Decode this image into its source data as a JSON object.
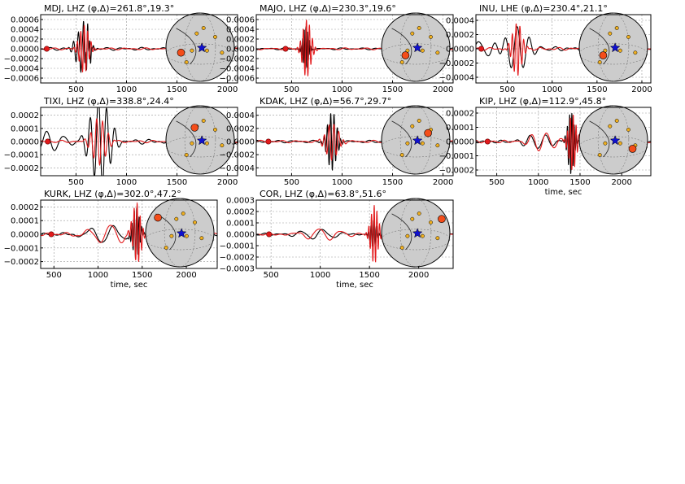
{
  "colors": {
    "observed": "#000000",
    "synthetic": "#e31a1c",
    "event_star": "#1010d0",
    "station": "#f44d1a",
    "other_stations": "#f0b020",
    "globe": "#cccccc"
  },
  "chart_data": [
    {
      "type": "line",
      "title": "MDJ, LHZ (φ,Δ)=261.8°,19.3°",
      "station": "MDJ",
      "component": "LHZ",
      "azimuth": 261.8,
      "distance": 19.3,
      "xlim": [
        150,
        2100
      ],
      "ylim": [
        -0.0007,
        0.0007
      ],
      "xticks": [
        500,
        1000,
        1500,
        2000
      ],
      "yticks": [
        -0.0006,
        -0.0004,
        -0.0002,
        0.0,
        0.0002,
        0.0004,
        0.0006
      ],
      "ytick_labels": [
        "−0.0006",
        "−0.0004",
        "−0.0002",
        "0.0000",
        "0.0002",
        "0.0004",
        "0.0006"
      ],
      "xlabel": "",
      "arrival_marks": [
        210
      ],
      "series": [
        {
          "kind": "observed",
          "packets": [
            [
              560,
              80,
              0.00045,
              4.5
            ],
            [
              610,
              40,
              0.0003,
              5.5
            ]
          ],
          "noise": 3e-05
        },
        {
          "kind": "synthetic",
          "packets": [
            [
              580,
              60,
              0.0005,
              4.8
            ]
          ],
          "noise": 2e-05
        }
      ],
      "globe_station": [
        0.22,
        0.58
      ]
    },
    {
      "type": "line",
      "title": "MAJO, LHZ (φ,Δ)=230.3°,19.6°",
      "station": "MAJO",
      "component": "LHZ",
      "azimuth": 230.3,
      "distance": 19.6,
      "xlim": [
        150,
        2100
      ],
      "ylim": [
        -0.0007,
        0.0007
      ],
      "xticks": [
        500,
        1000,
        1500,
        2000
      ],
      "yticks": [
        -0.0006,
        -0.0004,
        -0.0002,
        0.0,
        0.0002,
        0.0004,
        0.0006
      ],
      "ytick_labels": [
        "−0.0006",
        "−0.0004",
        "−0.0002",
        "0.0000",
        "0.0002",
        "0.0004",
        "0.0006"
      ],
      "xlabel": "",
      "arrival_marks": [
        440
      ],
      "series": [
        {
          "kind": "observed",
          "packets": [
            [
              640,
              35,
              0.00045,
              6.0
            ]
          ],
          "noise": 2e-05
        },
        {
          "kind": "synthetic",
          "packets": [
            [
              650,
              55,
              0.0006,
              5.0
            ]
          ],
          "noise": 2e-05
        }
      ],
      "globe_station": [
        0.35,
        0.62
      ]
    },
    {
      "type": "line",
      "title": "INU, LHE (φ,Δ)=230.4°,21.1°",
      "station": "INU",
      "component": "LHE",
      "azimuth": 230.4,
      "distance": 21.1,
      "xlim": [
        150,
        2100
      ],
      "ylim": [
        -0.00048,
        0.00048
      ],
      "xticks": [
        500,
        1000,
        1500,
        2000
      ],
      "yticks": [
        -0.0004,
        -0.0002,
        0.0,
        0.0002,
        0.0004
      ],
      "ytick_labels": [
        "−0.0004",
        "−0.0002",
        "0.0000",
        "0.0002",
        "0.0004"
      ],
      "xlabel": "",
      "arrival_marks": [
        210
      ],
      "series": [
        {
          "kind": "observed",
          "packets": [
            [
              200,
              250,
              0.00012,
              3.5
            ],
            [
              620,
              180,
              0.0003,
              3.6
            ]
          ],
          "noise": 3e-05
        },
        {
          "kind": "synthetic",
          "packets": [
            [
              610,
              70,
              0.00038,
              4.5
            ]
          ],
          "noise": 2e-05
        }
      ],
      "globe_station": [
        0.35,
        0.62
      ]
    },
    {
      "type": "line",
      "title": "TIXI, LHZ (φ,Δ)=338.8°,24.4°",
      "station": "TIXI",
      "component": "LHZ",
      "azimuth": 338.8,
      "distance": 24.4,
      "xlim": [
        150,
        2100
      ],
      "ylim": [
        -0.00026,
        0.00026
      ],
      "xticks": [
        500,
        1000,
        1500,
        2000
      ],
      "yticks": [
        -0.0002,
        -0.0001,
        0.0,
        0.0001,
        0.0002
      ],
      "ytick_labels": [
        "−0.0002",
        "−0.0001",
        "0.0000",
        "0.0001",
        "0.0002"
      ],
      "xlabel": "",
      "arrival_marks": [
        220
      ],
      "series": [
        {
          "kind": "observed",
          "packets": [
            [
              250,
              200,
              8e-05,
              3.2
            ],
            [
              740,
              120,
              0.00035,
              4.0
            ]
          ],
          "noise": 2e-05
        },
        {
          "kind": "synthetic",
          "packets": [
            [
              730,
              90,
              0.00018,
              4.2
            ]
          ],
          "noise": 1e-05
        }
      ],
      "globe_station": [
        0.42,
        0.32
      ]
    },
    {
      "type": "line",
      "title": "KDAK, LHZ (φ,Δ)=56.7°,29.7°",
      "station": "KDAK",
      "component": "LHZ",
      "azimuth": 56.7,
      "distance": 29.7,
      "xlim": [
        150,
        2100
      ],
      "ylim": [
        -0.00052,
        0.00052
      ],
      "xticks": [
        500,
        1000,
        1500,
        2000
      ],
      "yticks": [
        -0.0004,
        -0.0002,
        0.0,
        0.0002,
        0.0004
      ],
      "ytick_labels": [
        "−0.0004",
        "−0.0002",
        "0.0000",
        "0.0002",
        "0.0004"
      ],
      "xlabel": "",
      "arrival_marks": [
        270
      ],
      "series": [
        {
          "kind": "observed",
          "packets": [
            [
              900,
              60,
              0.00045,
              5.0
            ]
          ],
          "noise": 2e-05
        },
        {
          "kind": "synthetic",
          "packets": [
            [
              900,
              80,
              0.00028,
              4.6
            ]
          ],
          "noise": 2e-05
        }
      ],
      "globe_station": [
        0.68,
        0.4
      ]
    },
    {
      "type": "line",
      "title": "KIP, LHZ (φ,Δ)=112.9°,45.8°",
      "station": "KIP",
      "component": "LHZ",
      "azimuth": 112.9,
      "distance": 45.8,
      "xlim": [
        250,
        2350
      ],
      "ylim": [
        -0.00024,
        0.00024
      ],
      "xticks": [
        500,
        1000,
        1500,
        2000
      ],
      "yticks": [
        -0.0002,
        -0.0001,
        0.0,
        0.0001,
        0.0002
      ],
      "ytick_labels": [
        "−0.0002",
        "−0.0001",
        "0.0000",
        "0.0001",
        "0.0002"
      ],
      "xlabel": "time, sec",
      "arrival_marks": [
        390
      ],
      "series": [
        {
          "kind": "observed",
          "packets": [
            [
              1000,
              200,
              5e-05,
              3.0
            ],
            [
              1390,
              50,
              0.00022,
              5.0
            ]
          ],
          "noise": 1e-05
        },
        {
          "kind": "synthetic",
          "packets": [
            [
              1050,
              200,
              7e-05,
              3.0
            ],
            [
              1410,
              60,
              0.0002,
              4.8
            ]
          ],
          "noise": 1e-05
        }
      ],
      "globe_station": [
        0.78,
        0.63
      ]
    },
    {
      "type": "line",
      "title": "KURK, LHZ (φ,Δ)=302.0°,47.2°",
      "station": "KURK",
      "component": "LHZ",
      "azimuth": 302.0,
      "distance": 47.2,
      "xlim": [
        350,
        2350
      ],
      "ylim": [
        -0.00025,
        0.00025
      ],
      "xticks": [
        500,
        1000,
        1500,
        2000
      ],
      "yticks": [
        -0.0002,
        -0.0001,
        0.0,
        0.0001,
        0.0002
      ],
      "ytick_labels": [
        "−0.0002",
        "−0.0001",
        "0.0000",
        "0.0001",
        "0.0002"
      ],
      "xlabel": "time, sec",
      "arrival_marks": [
        470
      ],
      "series": [
        {
          "kind": "observed",
          "packets": [
            [
              1100,
              300,
              6e-05,
              3.0
            ],
            [
              1430,
              50,
              0.00019,
              5.0
            ]
          ],
          "noise": 1e-05
        },
        {
          "kind": "synthetic",
          "packets": [
            [
              1120,
              280,
              7e-05,
              3.0
            ],
            [
              1440,
              60,
              0.00022,
              4.8
            ]
          ],
          "noise": 1e-05
        }
      ],
      "globe_station": [
        0.18,
        0.28
      ]
    },
    {
      "type": "line",
      "title": "COR, LHZ (φ,Δ)=63.8°,51.6°",
      "station": "COR",
      "component": "LHZ",
      "azimuth": 63.8,
      "distance": 51.6,
      "xlim": [
        350,
        2350
      ],
      "ylim": [
        -0.0003,
        0.0003
      ],
      "xticks": [
        500,
        1000,
        1500,
        2000
      ],
      "yticks": [
        -0.0003,
        -0.0002,
        -0.0001,
        0.0,
        0.0001,
        0.0002,
        0.0003
      ],
      "ytick_labels": [
        "−0.0003",
        "−0.0002",
        "−0.0001",
        "0.0000",
        "0.0001",
        "0.0002",
        "0.0003"
      ],
      "xlabel": "time, sec",
      "arrival_marks": [
        480
      ],
      "series": [
        {
          "kind": "observed",
          "packets": [
            [
              1000,
              250,
              4e-05,
              3.0
            ],
            [
              1540,
              40,
              0.00012,
              4.0
            ]
          ],
          "noise": 1e-05
        },
        {
          "kind": "synthetic",
          "packets": [
            [
              1000,
              250,
              5e-05,
              3.0
            ],
            [
              1550,
              50,
              0.00026,
              5.0
            ]
          ],
          "noise": 1e-05
        }
      ],
      "globe_station": [
        0.88,
        0.3
      ]
    }
  ]
}
